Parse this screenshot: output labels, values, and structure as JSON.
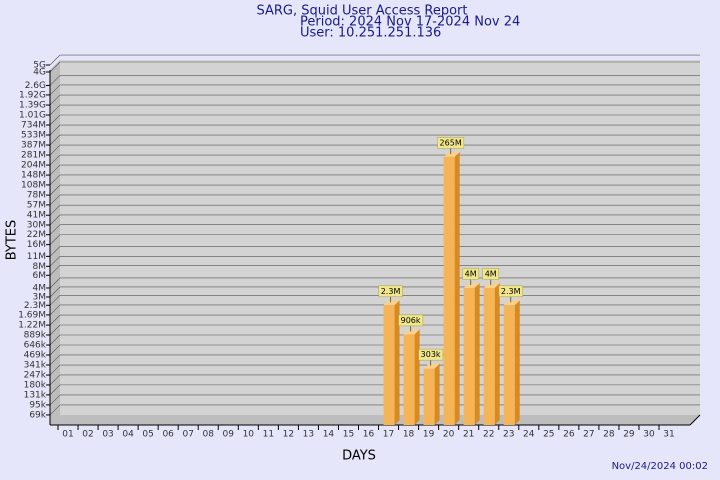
{
  "chart_data": {
    "type": "bar",
    "title": "SARG, Squid User Access Report",
    "subtitle": "Period: 2024 Nov 17-2024 Nov 24",
    "user": "User: 10.251.251.136",
    "x_label": "DAYS",
    "y_label": "BYTES",
    "timestamp": "Nov/24/2024 00:02",
    "log_scale": true,
    "grid": true,
    "color": "#f5b556",
    "categories": [
      "01",
      "02",
      "03",
      "04",
      "05",
      "06",
      "07",
      "08",
      "09",
      "10",
      "11",
      "12",
      "13",
      "14",
      "15",
      "16",
      "17",
      "18",
      "19",
      "20",
      "21",
      "22",
      "23",
      "24",
      "25",
      "26",
      "27",
      "28",
      "29",
      "30",
      "31"
    ],
    "values": [
      null,
      null,
      null,
      null,
      null,
      null,
      null,
      null,
      null,
      null,
      null,
      null,
      null,
      null,
      null,
      null,
      2300000,
      906000,
      303000,
      265000000,
      4000000,
      4000000,
      2300000,
      null,
      null,
      null,
      null,
      null,
      null,
      null,
      null
    ],
    "value_labels": [
      null,
      null,
      null,
      null,
      null,
      null,
      null,
      null,
      null,
      null,
      null,
      null,
      null,
      null,
      null,
      null,
      "2.3M",
      "906k",
      "303k",
      "265M",
      "4M",
      "4M",
      "2.3M",
      null,
      null,
      null,
      null,
      null,
      null,
      null,
      null
    ],
    "ylim": [
      50000,
      5870000000
    ],
    "yticks": [
      {
        "value": 69000,
        "label": "69k"
      },
      {
        "value": 95000,
        "label": "95k"
      },
      {
        "value": 131000,
        "label": "131k"
      },
      {
        "value": 180000,
        "label": "180k"
      },
      {
        "value": 247000,
        "label": "247k"
      },
      {
        "value": 341000,
        "label": "341k"
      },
      {
        "value": 469000,
        "label": "469k"
      },
      {
        "value": 646000,
        "label": "646k"
      },
      {
        "value": 889000,
        "label": "889k"
      },
      {
        "value": 1220000,
        "label": "1.22M"
      },
      {
        "value": 1690000,
        "label": "1.69M"
      },
      {
        "value": 2300000,
        "label": "2.3M"
      },
      {
        "value": 3000000,
        "label": "3M"
      },
      {
        "value": 4000000,
        "label": "4M"
      },
      {
        "value": 6000000,
        "label": "6M"
      },
      {
        "value": 8000000,
        "label": "8M"
      },
      {
        "value": 11000000,
        "label": "11M"
      },
      {
        "value": 16000000,
        "label": "16M"
      },
      {
        "value": 22000000,
        "label": "22M"
      },
      {
        "value": 30000000,
        "label": "30M"
      },
      {
        "value": 41000000,
        "label": "41M"
      },
      {
        "value": 57000000,
        "label": "57M"
      },
      {
        "value": 78000000,
        "label": "78M"
      },
      {
        "value": 108000000,
        "label": "108M"
      },
      {
        "value": 148000000,
        "label": "148M"
      },
      {
        "value": 204000000,
        "label": "204M"
      },
      {
        "value": 281000000,
        "label": "281M"
      },
      {
        "value": 387000000,
        "label": "387M"
      },
      {
        "value": 533000000,
        "label": "533M"
      },
      {
        "value": 734000000,
        "label": "734M"
      },
      {
        "value": 1010000000,
        "label": "1.01G"
      },
      {
        "value": 1390000000,
        "label": "1.39G"
      },
      {
        "value": 1920000000,
        "label": "1.92G"
      },
      {
        "value": 2600000000,
        "label": "2.6G"
      },
      {
        "value": 4000000000,
        "label": "4G"
      },
      {
        "value": 5000000000,
        "label": "5G"
      }
    ]
  }
}
